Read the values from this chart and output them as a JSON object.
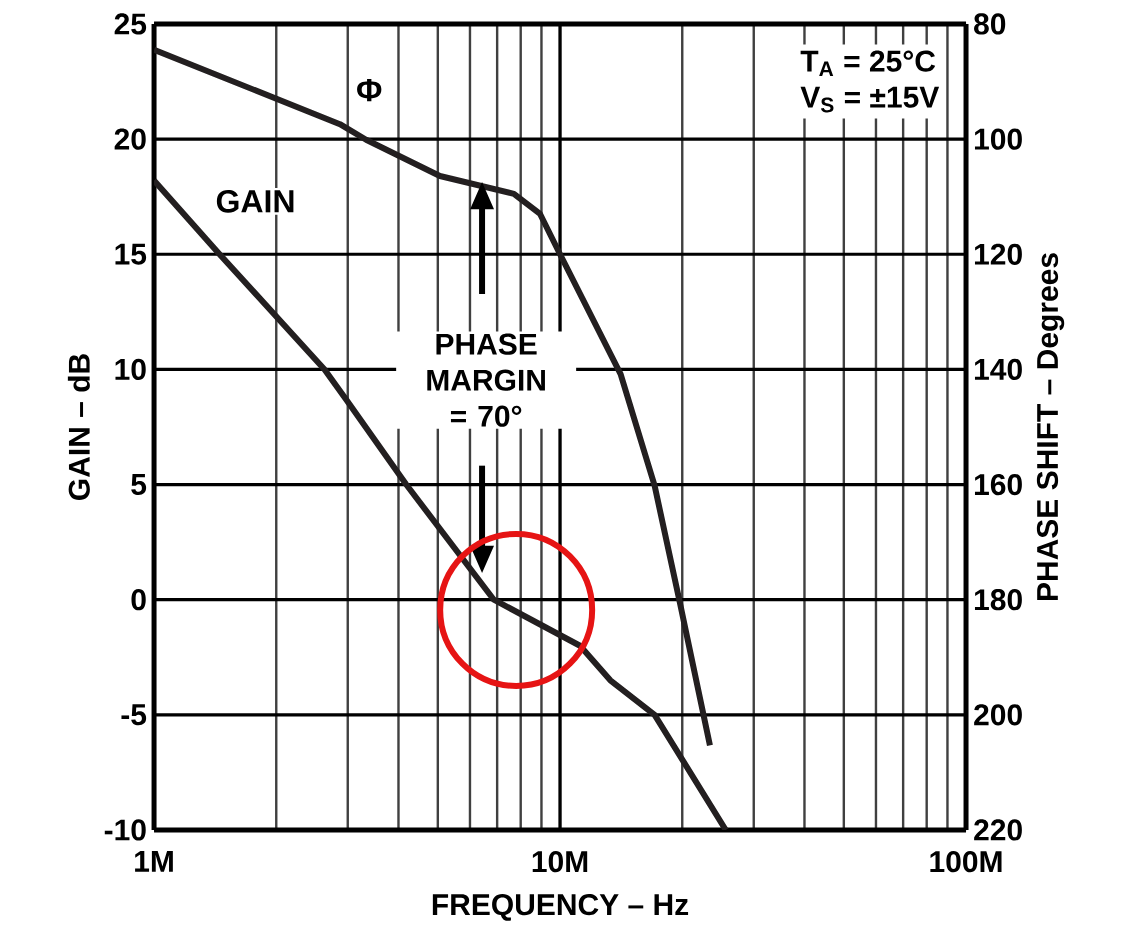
{
  "chart_data": {
    "type": "line",
    "xlabel": "FREQUENCY – Hz",
    "ylabel": "GAIN – dB",
    "y2label": "PHASE SHIFT – Degrees",
    "annotations": [
      "T$_{A}$ = 25°C",
      "V$_{S}$ = ±15V",
      "PHASE MARGIN = 70°"
    ],
    "series": [
      {
        "name": "GAIN",
        "color": "#231f20",
        "x": [
          1000000,
          1450000,
          2630000,
          2970000,
          4180000,
          6870000,
          11200000,
          13300000,
          17100000,
          25600000
        ],
        "values": [
          18.2,
          15,
          10,
          8.7,
          5,
          0,
          -2,
          -3.5,
          -5,
          -10
        ]
      },
      {
        "name": "Φ",
        "color": "#231f20",
        "axis": "y2",
        "x": [
          1000000,
          2870000,
          3330000,
          5060000,
          7700000,
          8930000,
          10000000,
          14100000,
          17100000,
          19800000,
          23400000
        ],
        "values": [
          84.5,
          97.4,
          100.1,
          106.4,
          109.5,
          113,
          120,
          140.8,
          160.2,
          181,
          205.3
        ]
      }
    ],
    "log": "x",
    "grid": true,
    "legend": false,
    "xlim": [
      1000000,
      100000000
    ],
    "xticks": [
      {
        "value": 1000000,
        "label": "1M"
      },
      {
        "value": 10000000,
        "label": "10M"
      },
      {
        "value": 100000000,
        "label": "100M"
      }
    ],
    "ylim": [
      -10,
      25
    ],
    "yticks": [
      -10,
      -5,
      0,
      5,
      10,
      15,
      20,
      25
    ],
    "y2lim": [
      220,
      80
    ],
    "y2ticks": [
      80,
      100,
      120,
      140,
      160,
      180,
      200,
      220
    ]
  }
}
